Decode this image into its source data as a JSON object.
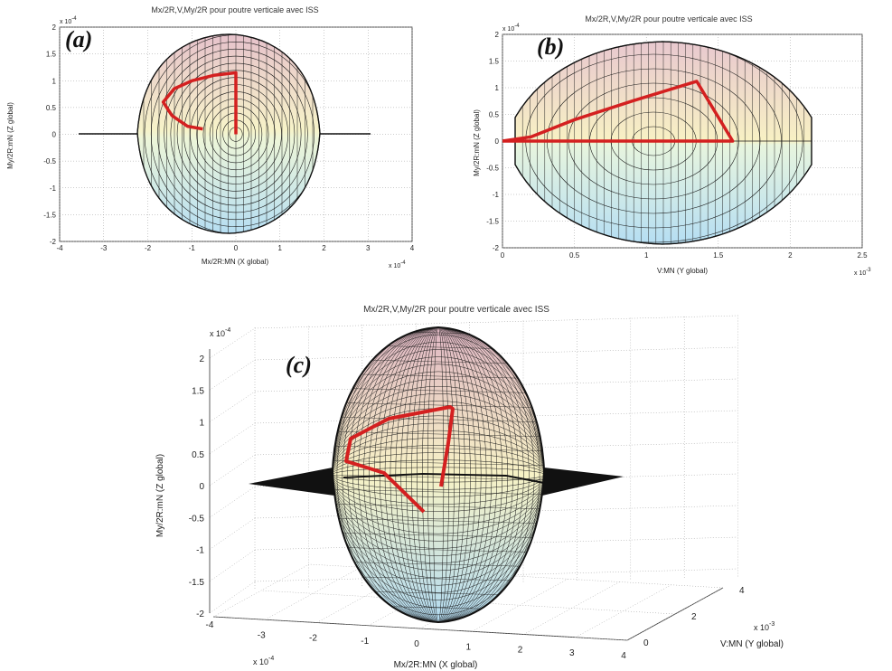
{
  "panels": [
    {
      "id": "a",
      "letter": "(a)",
      "title": "Mx/2R,V,My/2R pour poutre verticale avec ISS",
      "xlabel": "Mx/2R:MN (X global)",
      "ylabel": "My/2R:mN (Z global)",
      "x_ticks": [
        "-4",
        "-3",
        "-2",
        "-1",
        "0",
        "1",
        "2",
        "3",
        "4"
      ],
      "y_ticks": [
        "2",
        "1.5",
        "1",
        "0.5",
        "0",
        "-0.5",
        "-1",
        "-1.5",
        "-2"
      ],
      "x_exponent": "x 10",
      "x_exponent_power": "-4",
      "y_exponent": "x 10",
      "y_exponent_power": "-4"
    },
    {
      "id": "b",
      "letter": "(b)",
      "title": "Mx/2R,V,My/2R pour poutre verticale avec ISS",
      "xlabel": "V:MN (Y global)",
      "ylabel": "My/2R:mN (Z global)",
      "x_ticks": [
        "0",
        "0.5",
        "1",
        "1.5",
        "2",
        "2.5"
      ],
      "y_ticks": [
        "2",
        "1.5",
        "1",
        "0.5",
        "0",
        "-0.5",
        "-1",
        "-1.5",
        "-2"
      ],
      "x_exponent": "x 10",
      "x_exponent_power": "-3",
      "y_exponent": "x 10",
      "y_exponent_power": "-4"
    },
    {
      "id": "c",
      "letter": "(c)",
      "title": "Mx/2R,V,My/2R pour poutre verticale avec ISS",
      "xlabel": "Mx/2R:MN (X global)",
      "ylabel": "My/2R:mN (Z global)",
      "vlabel": "V:MN (Y global)",
      "z_ticks": [
        "2",
        "1.5",
        "1",
        "0.5",
        "0",
        "-0.5",
        "-1",
        "-1.5",
        "-2"
      ],
      "x_ticks": [
        "-4",
        "-3",
        "-2",
        "-1",
        "0",
        "1",
        "2",
        "3",
        "4"
      ],
      "v_ticks": [
        "0",
        "2",
        "4"
      ],
      "z_exponent": "x 10",
      "z_exponent_power": "-4",
      "x_exponent": "x 10",
      "x_exponent_power": "-4",
      "v_exponent": "x 10",
      "v_exponent_power": "-3"
    }
  ],
  "colors": {
    "surface_top": "#e8c9cf",
    "surface_mid": "#f6f0c8",
    "surface_bottom": "#b9e2f1",
    "mesh": "#1a1a1a",
    "path": "#d42020",
    "plane": "#111111",
    "grid": "#9a9a9a"
  },
  "chart_data": [
    {
      "type": "scatter",
      "panel": "a",
      "title": "Mx/2R,V,My/2R pour poutre verticale avec ISS",
      "xlabel": "Mx/2R:MN (X global)",
      "ylabel": "My/2R:mN (Z global)",
      "x_scale": "x 10^-4",
      "y_scale": "x 10^-4",
      "xlim": [
        -4,
        4
      ],
      "ylim": [
        -2,
        2
      ],
      "grid": true,
      "series": [
        {
          "values": [
            [
              0,
              0
            ],
            [
              0,
              0.2
            ],
            [
              0,
              0.9
            ],
            [
              0,
              1.15
            ],
            [
              -0.5,
              1.1
            ],
            [
              -1.0,
              1.0
            ],
            [
              -1.4,
              0.85
            ],
            [
              -1.65,
              0.6
            ],
            [
              -1.45,
              0.35
            ],
            [
              -1.1,
              0.15
            ],
            [
              -0.75,
              0.1
            ]
          ]
        }
      ],
      "surface": {
        "x_range": [
          -2,
          2
        ],
        "z_range": [
          -1.9,
          1.9
        ],
        "plane_x_range": [
          -3.1,
          3.1
        ]
      }
    },
    {
      "type": "scatter",
      "panel": "b",
      "title": "Mx/2R,V,My/2R pour poutre verticale avec ISS",
      "xlabel": "V:MN (Y global)",
      "ylabel": "My/2R:mN (Z global)",
      "x_scale": "x 10^-3",
      "y_scale": "x 10^-4",
      "xlim": [
        0,
        2.5
      ],
      "ylim": [
        -2,
        2
      ],
      "grid": true,
      "series": [
        {
          "values": [
            [
              0,
              0
            ],
            [
              1.6,
              0
            ],
            [
              1.35,
              1.12
            ],
            [
              0.9,
              0.75
            ],
            [
              0.5,
              0.4
            ],
            [
              0.2,
              0.08
            ],
            [
              0,
              0
            ]
          ]
        }
      ],
      "surface": {
        "v_range": [
          0.1,
          2.0
        ],
        "z_range": [
          -1.9,
          1.9
        ]
      }
    },
    {
      "type": "scatter",
      "panel": "c",
      "title": "Mx/2R,V,My/2R pour poutre verticale avec ISS",
      "xlabel": "Mx/2R:MN (X global)",
      "ylabel": "V:MN (Y global)",
      "zlabel": "My/2R:mN (Z global)",
      "x_scale": "x 10^-4",
      "y_scale": "x 10^-3",
      "z_scale": "x 10^-4",
      "xlim": [
        -4,
        4
      ],
      "ylim": [
        0,
        4
      ],
      "zlim": [
        -2,
        2
      ],
      "grid": true
    }
  ]
}
